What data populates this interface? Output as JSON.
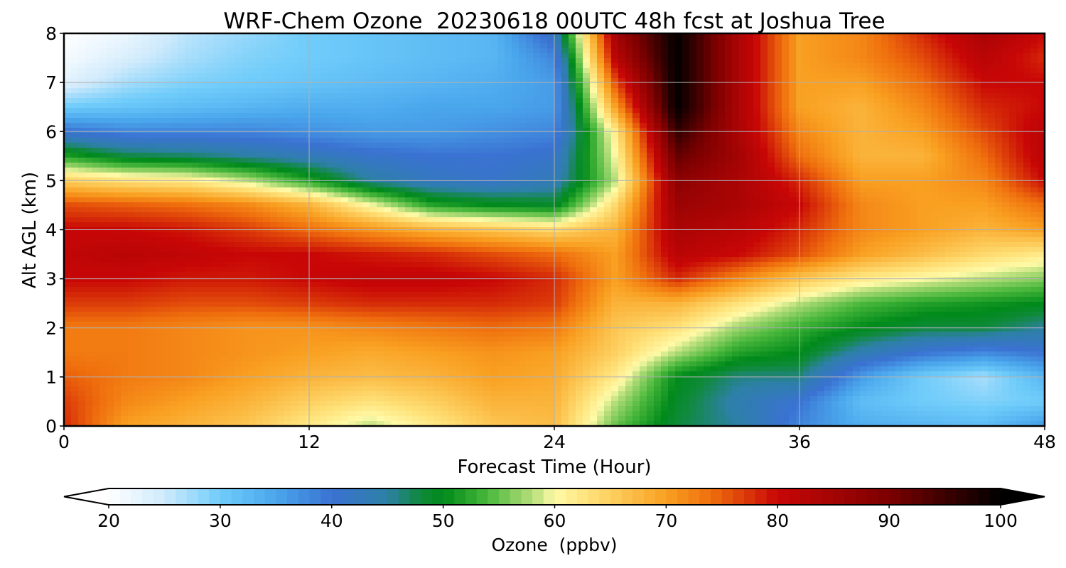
{
  "chart_data": {
    "type": "heatmap",
    "title": "WRF-Chem Ozone  20230618 00UTC 48h fcst at Joshua Tree",
    "xlabel": "Forecast Time (Hour)",
    "ylabel": "Alt AGL (km)",
    "xlim": [
      0,
      48
    ],
    "ylim": [
      0,
      8
    ],
    "x_ticks": [
      0,
      12,
      24,
      36,
      48
    ],
    "y_ticks": [
      0,
      1,
      2,
      3,
      4,
      5,
      6,
      7,
      8
    ],
    "grid": true,
    "x": [
      0,
      3,
      6,
      9,
      12,
      15,
      18,
      21,
      24,
      27,
      30,
      33,
      36,
      39,
      42,
      45,
      48
    ],
    "y": [
      0,
      0.5,
      1,
      1.5,
      2,
      2.5,
      3,
      3.5,
      4,
      4.5,
      5,
      5.5,
      6,
      6.5,
      7,
      7.5,
      8
    ],
    "z": [
      [
        78,
        70,
        68,
        66,
        62,
        58,
        62,
        66,
        67,
        55,
        48,
        45,
        38,
        34,
        33,
        32,
        36
      ],
      [
        77,
        72,
        70,
        68,
        65,
        63,
        65,
        68,
        68,
        58,
        49,
        44,
        40,
        32,
        30,
        29,
        30
      ],
      [
        75,
        73,
        72,
        70,
        68,
        67,
        68,
        70,
        69,
        62,
        50,
        46,
        46,
        36,
        30,
        27,
        33
      ],
      [
        73,
        73,
        72,
        71,
        70,
        69,
        70,
        71,
        70,
        65,
        58,
        52,
        50,
        44,
        40,
        38,
        40
      ],
      [
        73,
        73,
        72,
        71,
        71,
        72,
        73,
        74,
        73,
        66,
        63,
        57,
        53,
        50,
        48,
        48,
        45
      ],
      [
        77,
        77,
        76,
        76,
        77,
        78,
        78,
        78,
        77,
        68,
        68,
        63,
        58,
        54,
        52,
        51,
        50
      ],
      [
        80,
        80,
        79,
        79,
        80,
        81,
        81,
        80,
        78,
        70,
        78,
        72,
        66,
        62,
        60,
        58,
        56
      ],
      [
        81,
        82,
        81,
        80,
        80,
        79,
        78,
        76,
        74,
        70,
        82,
        80,
        76,
        70,
        67,
        64,
        62
      ],
      [
        80,
        80,
        79,
        77,
        74,
        71,
        68,
        66,
        64,
        68,
        84,
        82,
        78,
        72,
        70,
        68,
        70
      ],
      [
        76,
        75,
        74,
        72,
        68,
        60,
        52,
        50,
        49,
        64,
        86,
        84,
        80,
        72,
        70,
        70,
        74
      ],
      [
        65,
        63,
        62,
        58,
        52,
        45,
        42,
        41,
        43,
        58,
        88,
        84,
        78,
        70,
        70,
        72,
        80
      ],
      [
        52,
        48,
        47,
        45,
        43,
        41,
        40,
        40,
        41,
        60,
        92,
        85,
        74,
        68,
        68,
        74,
        82
      ],
      [
        40,
        38,
        38,
        38,
        37,
        36,
        36,
        37,
        38,
        62,
        96,
        84,
        72,
        68,
        70,
        76,
        82
      ],
      [
        30,
        31,
        32,
        33,
        34,
        34,
        35,
        35,
        36,
        70,
        100,
        84,
        70,
        68,
        72,
        78,
        80
      ],
      [
        23,
        27,
        29,
        30,
        31,
        32,
        33,
        34,
        36,
        76,
        100,
        84,
        70,
        70,
        74,
        80,
        80
      ],
      [
        21,
        24,
        27,
        29,
        30,
        31,
        32,
        33,
        38,
        82,
        100,
        84,
        70,
        72,
        76,
        82,
        78
      ],
      [
        20,
        22,
        26,
        28,
        30,
        31,
        32,
        33,
        42,
        85,
        100,
        84,
        70,
        72,
        78,
        84,
        80
      ]
    ],
    "colorbar": {
      "label": "Ozone  (ppbv)",
      "vmin": 20,
      "vmax": 100,
      "ticks": [
        20,
        30,
        40,
        50,
        60,
        70,
        80,
        90,
        100
      ],
      "extend": "both",
      "colormap": [
        [
          20,
          "#ffffff"
        ],
        [
          25,
          "#cfeafc"
        ],
        [
          30,
          "#6fccfa"
        ],
        [
          35,
          "#4aa6ec"
        ],
        [
          40,
          "#3a72d2"
        ],
        [
          45,
          "#2d80a6"
        ],
        [
          48,
          "#0f8a3a"
        ],
        [
          50,
          "#008a1a"
        ],
        [
          54,
          "#4ab83c"
        ],
        [
          58,
          "#b6de7a"
        ],
        [
          60,
          "#fffaa8"
        ],
        [
          63,
          "#ffe27a"
        ],
        [
          66,
          "#fcc653"
        ],
        [
          70,
          "#f9a021"
        ],
        [
          74,
          "#ef6e0d"
        ],
        [
          78,
          "#d52a08"
        ],
        [
          80,
          "#c80606"
        ],
        [
          85,
          "#a30404"
        ],
        [
          90,
          "#7c0000"
        ],
        [
          95,
          "#3c0000"
        ],
        [
          100,
          "#000000"
        ]
      ]
    }
  }
}
